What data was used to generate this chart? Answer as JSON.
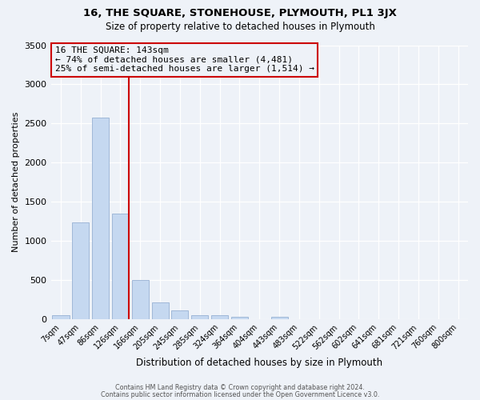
{
  "title": "16, THE SQUARE, STONEHOUSE, PLYMOUTH, PL1 3JX",
  "subtitle": "Size of property relative to detached houses in Plymouth",
  "xlabel": "Distribution of detached houses by size in Plymouth",
  "ylabel": "Number of detached properties",
  "bar_labels": [
    "7sqm",
    "47sqm",
    "86sqm",
    "126sqm",
    "166sqm",
    "205sqm",
    "245sqm",
    "285sqm",
    "324sqm",
    "364sqm",
    "404sqm",
    "443sqm",
    "483sqm",
    "522sqm",
    "562sqm",
    "602sqm",
    "641sqm",
    "681sqm",
    "721sqm",
    "760sqm",
    "800sqm"
  ],
  "bar_values": [
    50,
    1240,
    2570,
    1350,
    495,
    210,
    110,
    50,
    45,
    30,
    0,
    25,
    0,
    0,
    0,
    0,
    0,
    0,
    0,
    0,
    0
  ],
  "bar_color": "#c5d8f0",
  "bar_edge_color": "#a0b8d8",
  "ylim": [
    0,
    3500
  ],
  "yticks": [
    0,
    500,
    1000,
    1500,
    2000,
    2500,
    3000,
    3500
  ],
  "marker_bar_index": 3,
  "marker_label": "16 THE SQUARE: 143sqm",
  "annotation_line1": "← 74% of detached houses are smaller (4,481)",
  "annotation_line2": "25% of semi-detached houses are larger (1,514) →",
  "marker_color": "#cc0000",
  "box_edge_color": "#cc0000",
  "bg_color": "#eef2f8",
  "grid_color": "#ffffff",
  "footer1": "Contains HM Land Registry data © Crown copyright and database right 2024.",
  "footer2": "Contains public sector information licensed under the Open Government Licence v3.0."
}
